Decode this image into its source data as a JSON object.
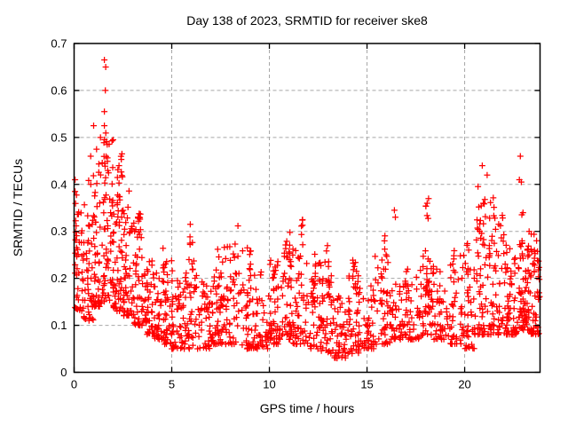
{
  "chart_data": {
    "type": "scatter",
    "title": "Day 138 of 2023, SRMTID for receiver ske8",
    "xlabel": "GPS time / hours",
    "ylabel": "SRMTID / TECUs",
    "xlim": [
      0,
      23.86
    ],
    "ylim": [
      0,
      0.7
    ],
    "xticks": [
      0,
      5,
      10,
      15,
      20
    ],
    "yticks": [
      0,
      0.1,
      0.2,
      0.3,
      0.4,
      0.5,
      0.6,
      0.7
    ],
    "grid": {
      "show": true,
      "color": "#a6a6a6",
      "dash": [
        4,
        3
      ]
    },
    "legend": "none",
    "border_color": "#000000",
    "marker": {
      "shape": "plus",
      "color": "#ff0000",
      "size": 7,
      "stroke_width": 1.25
    },
    "layout_hint": {
      "plot_left": 83.5,
      "plot_top": 49,
      "plot_right": 608.5,
      "plot_bottom": 419.5
    },
    "description": "Dense scatter of SRMTID values vs GPS time; high values 0.3-0.67 TECUs near hours 1-3, band of 0.05-0.2 through midday with spike columns to ~0.3, rising again to 0.3-0.46 near hours 20-23.",
    "point_cloud": {
      "seed": 138,
      "band_power": 1.8,
      "bands": [
        [
          0.0,
          0.5,
          40,
          0.13,
          0.36
        ],
        [
          0.5,
          1.0,
          45,
          0.11,
          0.42
        ],
        [
          1.0,
          1.5,
          50,
          0.14,
          0.46
        ],
        [
          1.5,
          2.0,
          55,
          0.15,
          0.5
        ],
        [
          2.0,
          2.5,
          55,
          0.13,
          0.47
        ],
        [
          2.5,
          3.0,
          50,
          0.12,
          0.4
        ],
        [
          3.0,
          3.5,
          45,
          0.1,
          0.34
        ],
        [
          3.5,
          4.0,
          40,
          0.08,
          0.26
        ],
        [
          4.0,
          4.5,
          38,
          0.07,
          0.22
        ],
        [
          4.5,
          5.0,
          38,
          0.06,
          0.24
        ],
        [
          5.0,
          5.5,
          38,
          0.05,
          0.22
        ],
        [
          5.5,
          6.2,
          45,
          0.05,
          0.24
        ],
        [
          6.2,
          7.0,
          45,
          0.05,
          0.22
        ],
        [
          7.0,
          7.5,
          40,
          0.06,
          0.24
        ],
        [
          7.5,
          8.5,
          55,
          0.06,
          0.28
        ],
        [
          8.5,
          9.2,
          45,
          0.05,
          0.26
        ],
        [
          9.2,
          10.0,
          45,
          0.05,
          0.22
        ],
        [
          10.0,
          10.5,
          40,
          0.06,
          0.24
        ],
        [
          10.5,
          11.2,
          45,
          0.07,
          0.28
        ],
        [
          11.2,
          11.8,
          40,
          0.06,
          0.28
        ],
        [
          11.8,
          12.6,
          45,
          0.05,
          0.24
        ],
        [
          12.6,
          13.2,
          45,
          0.04,
          0.24
        ],
        [
          13.2,
          14.0,
          50,
          0.03,
          0.17
        ],
        [
          14.0,
          14.6,
          45,
          0.04,
          0.22
        ],
        [
          14.6,
          15.4,
          45,
          0.05,
          0.19
        ],
        [
          15.4,
          16.2,
          45,
          0.06,
          0.26
        ],
        [
          16.2,
          17.0,
          45,
          0.07,
          0.2
        ],
        [
          17.0,
          17.8,
          45,
          0.07,
          0.22
        ],
        [
          17.8,
          18.4,
          40,
          0.08,
          0.26
        ],
        [
          18.4,
          19.2,
          42,
          0.07,
          0.24
        ],
        [
          19.2,
          20.0,
          42,
          0.06,
          0.26
        ],
        [
          20.0,
          20.5,
          36,
          0.05,
          0.28
        ],
        [
          20.5,
          21.2,
          50,
          0.08,
          0.38
        ],
        [
          21.2,
          22.0,
          55,
          0.08,
          0.34
        ],
        [
          22.0,
          22.7,
          60,
          0.08,
          0.3
        ],
        [
          22.7,
          23.3,
          65,
          0.09,
          0.28
        ],
        [
          23.3,
          23.86,
          50,
          0.08,
          0.28
        ]
      ],
      "spikes": [
        [
          0.15,
          0.1,
          6,
          0.25,
          0.39
        ],
        [
          1.62,
          0.12,
          10,
          0.3,
          0.52
        ],
        [
          2.3,
          0.15,
          10,
          0.28,
          0.46
        ],
        [
          3.3,
          0.12,
          7,
          0.18,
          0.35
        ],
        [
          4.6,
          0.1,
          5,
          0.15,
          0.28
        ],
        [
          6.0,
          0.12,
          8,
          0.15,
          0.31
        ],
        [
          7.45,
          0.1,
          6,
          0.15,
          0.27
        ],
        [
          8.3,
          0.15,
          9,
          0.15,
          0.32
        ],
        [
          8.95,
          0.1,
          7,
          0.15,
          0.29
        ],
        [
          10.3,
          0.12,
          7,
          0.15,
          0.27
        ],
        [
          11.0,
          0.12,
          8,
          0.16,
          0.3
        ],
        [
          11.65,
          0.08,
          6,
          0.2,
          0.33
        ],
        [
          12.3,
          0.1,
          6,
          0.15,
          0.28
        ],
        [
          13.0,
          0.1,
          7,
          0.15,
          0.28
        ],
        [
          14.35,
          0.1,
          6,
          0.12,
          0.25
        ],
        [
          15.95,
          0.12,
          8,
          0.15,
          0.31
        ],
        [
          18.1,
          0.12,
          12,
          0.12,
          0.37
        ],
        [
          19.5,
          0.1,
          5,
          0.15,
          0.27
        ],
        [
          20.7,
          0.12,
          10,
          0.2,
          0.42
        ],
        [
          21.4,
          0.12,
          8,
          0.2,
          0.4
        ],
        [
          22.9,
          0.1,
          8,
          0.2,
          0.35
        ],
        [
          23.5,
          0.1,
          6,
          0.15,
          0.3
        ]
      ],
      "outliers": [
        [
          1.55,
          0.665
        ],
        [
          1.62,
          0.65
        ],
        [
          1.6,
          0.6
        ],
        [
          1.55,
          0.555
        ],
        [
          1.0,
          0.525
        ],
        [
          1.55,
          0.525
        ],
        [
          1.35,
          0.5
        ],
        [
          2.0,
          0.495
        ],
        [
          1.15,
          0.475
        ],
        [
          0.85,
          0.46
        ],
        [
          2.45,
          0.465
        ],
        [
          2.3,
          0.44
        ],
        [
          0.05,
          0.41
        ],
        [
          0.05,
          0.385
        ],
        [
          16.4,
          0.345
        ],
        [
          16.45,
          0.33
        ],
        [
          18.15,
          0.37
        ],
        [
          20.9,
          0.44
        ],
        [
          21.15,
          0.42
        ],
        [
          22.85,
          0.46
        ],
        [
          22.8,
          0.41
        ],
        [
          22.9,
          0.405
        ],
        [
          23.3,
          0.3
        ],
        [
          11.7,
          0.325
        ],
        [
          5.95,
          0.315
        ],
        [
          3.1,
          0.3
        ]
      ]
    }
  }
}
